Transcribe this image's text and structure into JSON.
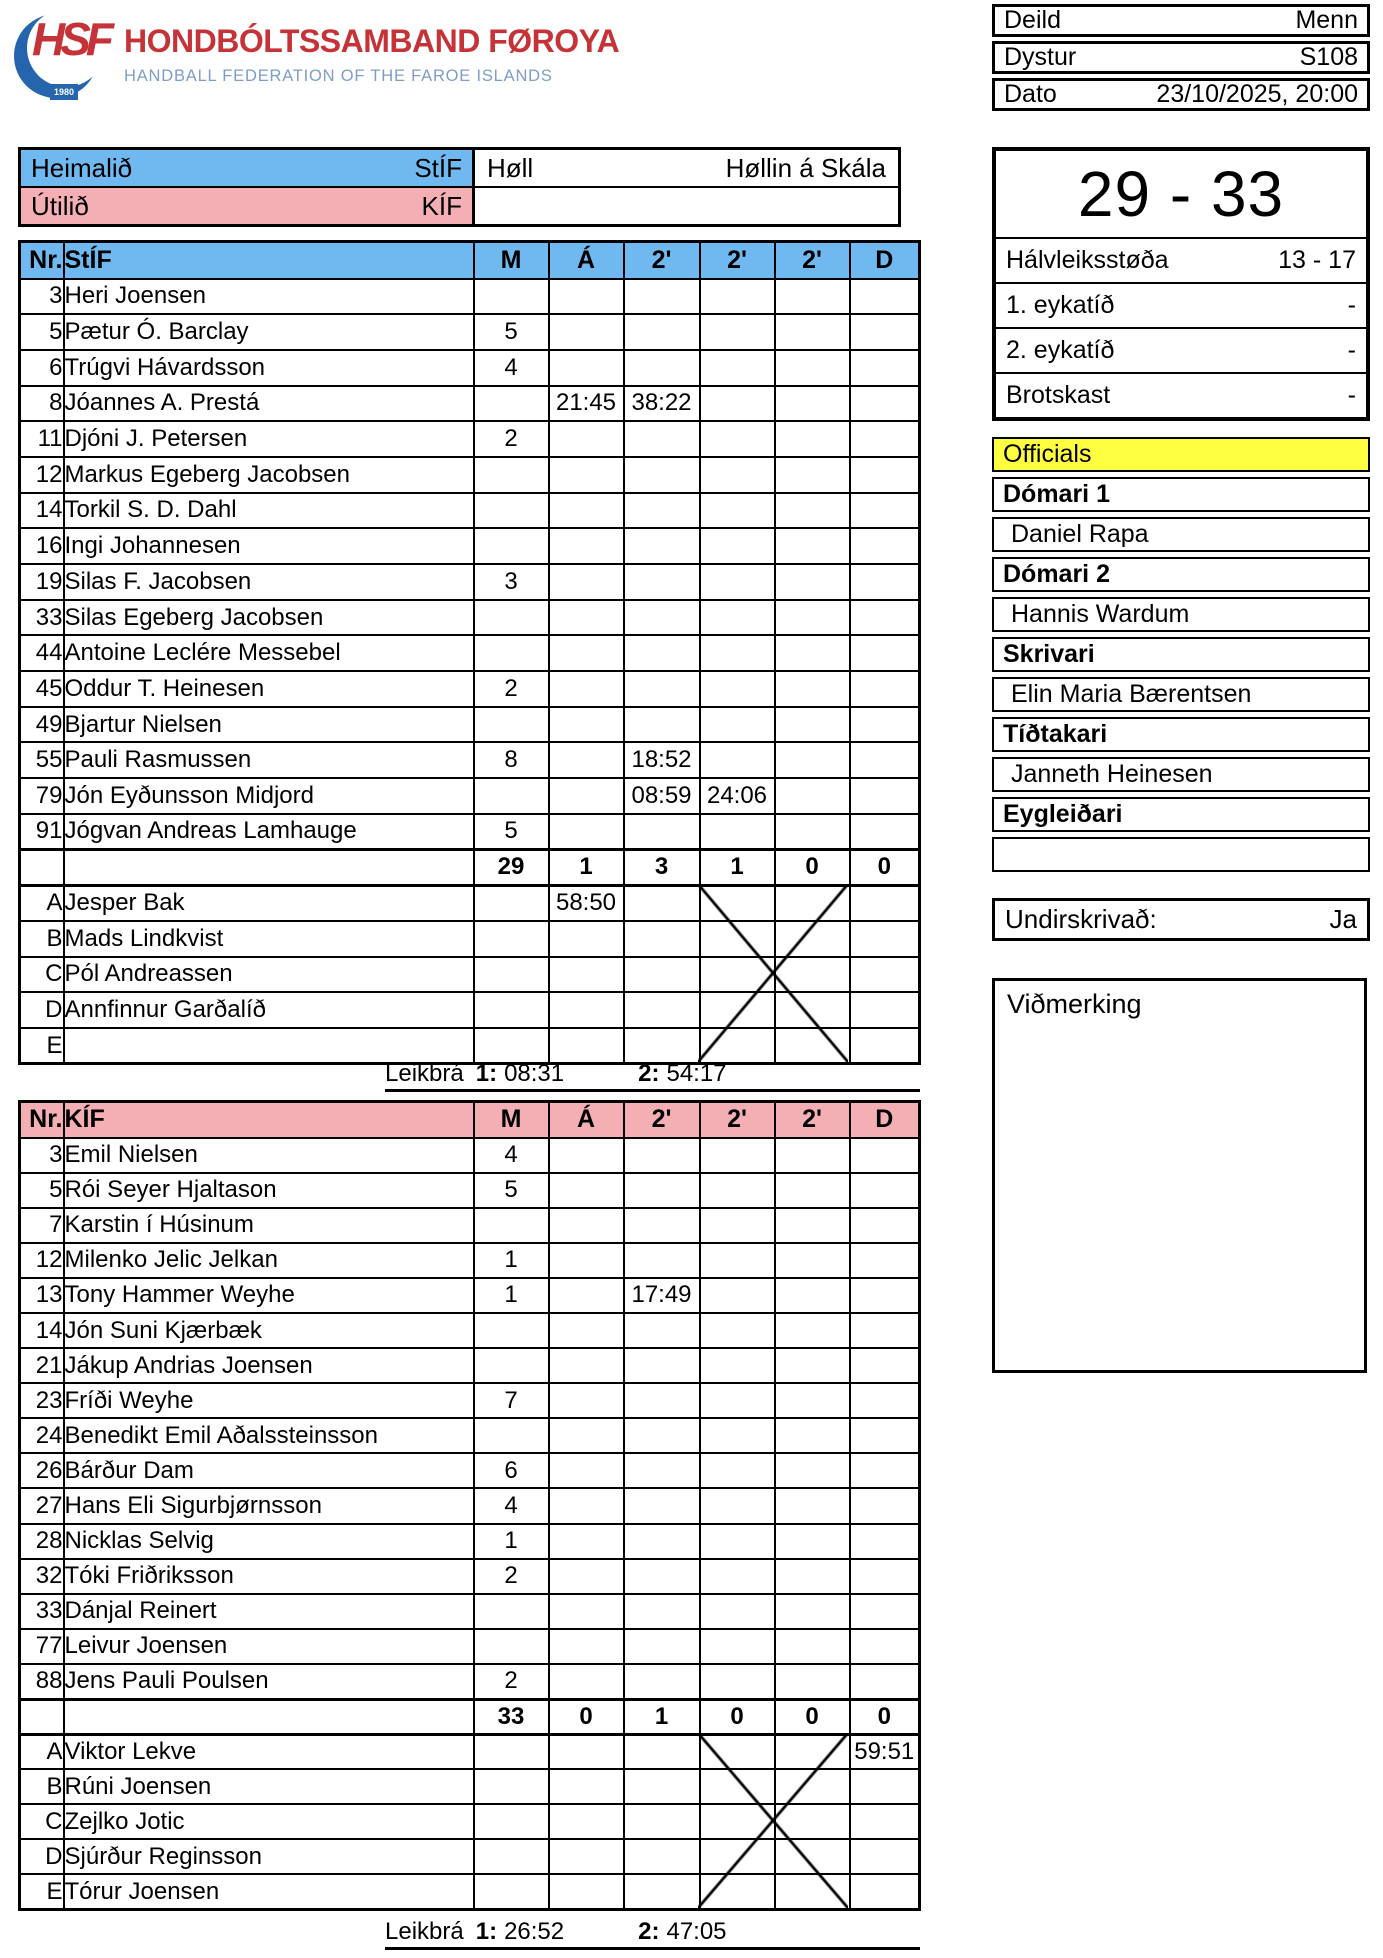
{
  "federation": {
    "acronym": "HSF",
    "year": "1980",
    "title": "HONDBÓLTSSAMBAND FØROYA",
    "subtitle": "HANDBALL FEDERATION OF THE FAROE ISLANDS"
  },
  "match_info": {
    "rows": [
      {
        "label": "Deild",
        "value": "Menn"
      },
      {
        "label": "Dystur",
        "value": "S108"
      },
      {
        "label": "Dato",
        "value": "23/10/2025, 20:00"
      }
    ]
  },
  "teams": {
    "home_label": "Heimalið",
    "home": "StÍF",
    "away_label": "Útilið",
    "away": "KÍF",
    "hall_label": "Høll",
    "hall": "Høllin á Skála"
  },
  "score": {
    "final": "29 - 33",
    "rows": [
      {
        "label": "Hálvleiksstøða",
        "value": "13 - 17"
      },
      {
        "label": "1. eykatíð",
        "value": "-"
      },
      {
        "label": "2. eykatíð",
        "value": "-"
      },
      {
        "label": "Brotskast",
        "value": "-"
      }
    ]
  },
  "officials": {
    "title": "Officials",
    "entries": [
      {
        "role": "Dómari 1",
        "name": "Daniel Rapa"
      },
      {
        "role": "Dómari 2",
        "name": "Hannis Wardum"
      },
      {
        "role": "Skrivari",
        "name": "Elin Maria Bærentsen"
      },
      {
        "role": "Tíðtakari",
        "name": "Janneth Heinesen"
      },
      {
        "role": "Eygleiðari",
        "name": ""
      }
    ]
  },
  "signature": {
    "label": "Undirskrivað:",
    "value": "Ja"
  },
  "remarks": {
    "label": "Viðmerking"
  },
  "tables": [
    {
      "team": "StÍF",
      "header": [
        "Nr.",
        "StÍF",
        "M",
        "Á",
        "2'",
        "2'",
        "2'",
        "D"
      ],
      "players": [
        [
          "3",
          "Heri Joensen",
          "",
          "",
          "",
          "",
          "",
          ""
        ],
        [
          "5",
          "Pætur Ó. Barclay",
          "5",
          "",
          "",
          "",
          "",
          ""
        ],
        [
          "6",
          "Trúgvi Hávardsson",
          "4",
          "",
          "",
          "",
          "",
          ""
        ],
        [
          "8",
          "Jóannes A. Prestá",
          "",
          "21:45",
          "38:22",
          "",
          "",
          ""
        ],
        [
          "11",
          "Djóni J. Petersen",
          "2",
          "",
          "",
          "",
          "",
          ""
        ],
        [
          "12",
          "Markus Egeberg Jacobsen",
          "",
          "",
          "",
          "",
          "",
          ""
        ],
        [
          "14",
          "Torkil S. D. Dahl",
          "",
          "",
          "",
          "",
          "",
          ""
        ],
        [
          "16",
          "Ingi Johannesen",
          "",
          "",
          "",
          "",
          "",
          ""
        ],
        [
          "19",
          "Silas F. Jacobsen",
          "3",
          "",
          "",
          "",
          "",
          ""
        ],
        [
          "33",
          "Silas Egeberg Jacobsen",
          "",
          "",
          "",
          "",
          "",
          ""
        ],
        [
          "44",
          "Antoine Leclére Messebel",
          "",
          "",
          "",
          "",
          "",
          ""
        ],
        [
          "45",
          "Oddur T. Heinesen",
          "2",
          "",
          "",
          "",
          "",
          ""
        ],
        [
          "49",
          "Bjartur Nielsen",
          "",
          "",
          "",
          "",
          "",
          ""
        ],
        [
          "55",
          "Pauli Rasmussen",
          "8",
          "",
          "18:52",
          "",
          "",
          ""
        ],
        [
          "79",
          "Jón Eyðunsson Midjord",
          "",
          "",
          "08:59",
          "24:06",
          "",
          ""
        ],
        [
          "91",
          "Jógvan Andreas Lamhauge",
          "5",
          "",
          "",
          "",
          "",
          ""
        ]
      ],
      "totals": [
        "",
        "",
        "29",
        "1",
        "3",
        "1",
        "0",
        "0"
      ],
      "subs": [
        [
          "A",
          "Jesper Bak",
          "",
          "58:50",
          "",
          "",
          "",
          ""
        ],
        [
          "B",
          "Mads Lindkvist",
          "",
          "",
          "",
          "",
          "",
          ""
        ],
        [
          "C",
          "Pól Andreassen",
          "",
          "",
          "",
          "",
          "",
          ""
        ],
        [
          "D",
          "Annfinnur Garðalíð",
          "",
          "",
          "",
          "",
          "",
          ""
        ],
        [
          "E",
          "",
          "",
          "",
          "",
          "",
          "",
          ""
        ]
      ],
      "leikbra": {
        "label": "Leikbrá",
        "part1_label": "1:",
        "part1": "08:31",
        "part2_label": "2:",
        "part2": "54:17"
      }
    },
    {
      "team": "KÍF",
      "header": [
        "Nr.",
        "KÍF",
        "M",
        "Á",
        "2'",
        "2'",
        "2'",
        "D"
      ],
      "players": [
        [
          "3",
          "Emil Nielsen",
          "4",
          "",
          "",
          "",
          "",
          ""
        ],
        [
          "5",
          "Rói Seyer Hjaltason",
          "5",
          "",
          "",
          "",
          "",
          ""
        ],
        [
          "7",
          "Karstin í Húsinum",
          "",
          "",
          "",
          "",
          "",
          ""
        ],
        [
          "12",
          "Milenko Jelic Jelkan",
          "1",
          "",
          "",
          "",
          "",
          ""
        ],
        [
          "13",
          "Tony Hammer Weyhe",
          "1",
          "",
          "17:49",
          "",
          "",
          ""
        ],
        [
          "14",
          "Jón Suni Kjærbæk",
          "",
          "",
          "",
          "",
          "",
          ""
        ],
        [
          "21",
          "Jákup Andrias Joensen",
          "",
          "",
          "",
          "",
          "",
          ""
        ],
        [
          "23",
          "Fríði Weyhe",
          "7",
          "",
          "",
          "",
          "",
          ""
        ],
        [
          "24",
          "Benedikt Emil Aðalssteinsson",
          "",
          "",
          "",
          "",
          "",
          ""
        ],
        [
          "26",
          "Bárður Dam",
          "6",
          "",
          "",
          "",
          "",
          ""
        ],
        [
          "27",
          "Hans Eli Sigurbjørnsson",
          "4",
          "",
          "",
          "",
          "",
          ""
        ],
        [
          "28",
          "Nicklas Selvig",
          "1",
          "",
          "",
          "",
          "",
          ""
        ],
        [
          "32",
          "Tóki Friðriksson",
          "2",
          "",
          "",
          "",
          "",
          ""
        ],
        [
          "33",
          "Dánjal Reinert",
          "",
          "",
          "",
          "",
          "",
          ""
        ],
        [
          "77",
          "Leivur Joensen",
          "",
          "",
          "",
          "",
          "",
          ""
        ],
        [
          "88",
          "Jens Pauli Poulsen",
          "2",
          "",
          "",
          "",
          "",
          ""
        ]
      ],
      "totals": [
        "",
        "",
        "33",
        "0",
        "1",
        "0",
        "0",
        "0"
      ],
      "subs": [
        [
          "A",
          "Viktor Lekve",
          "",
          "",
          "",
          "",
          "",
          "59:51"
        ],
        [
          "B",
          "Rúni Joensen",
          "",
          "",
          "",
          "",
          "",
          ""
        ],
        [
          "C",
          "Zejlko Jotic",
          "",
          "",
          "",
          "",
          "",
          ""
        ],
        [
          "D",
          "Sjúrður Reginsson",
          "",
          "",
          "",
          "",
          "",
          ""
        ],
        [
          "E",
          "Tórur Joensen",
          "",
          "",
          "",
          "",
          "",
          ""
        ]
      ],
      "leikbra": {
        "label": "Leikbrá",
        "part1_label": "1:",
        "part1": "26:52",
        "part2_label": "2:",
        "part2": "47:05"
      }
    }
  ]
}
